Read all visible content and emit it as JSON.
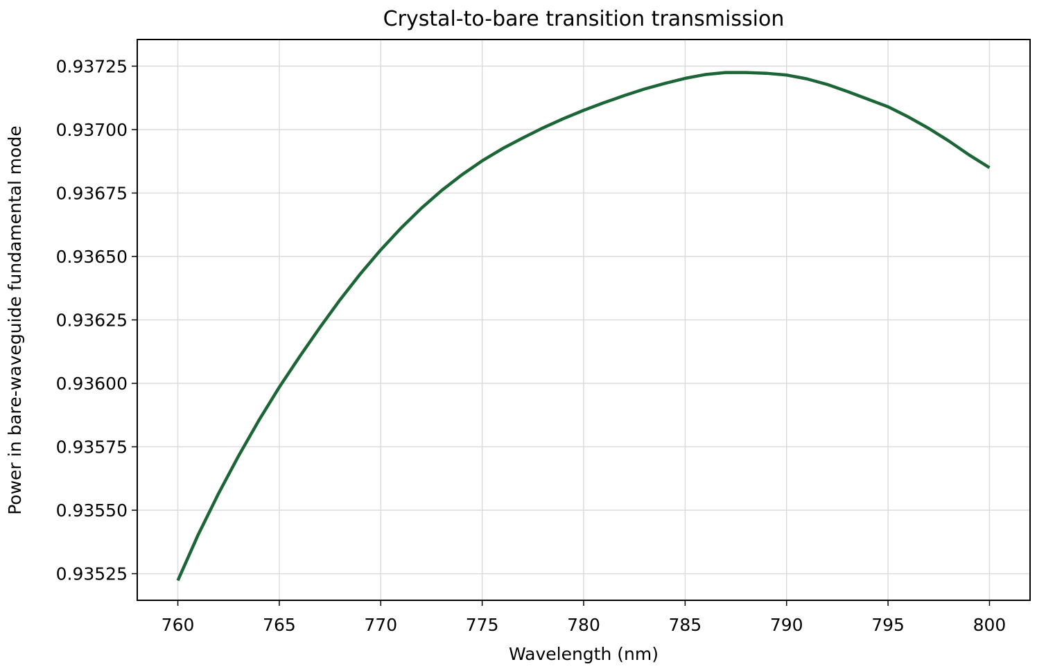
{
  "chart_data": {
    "type": "line",
    "title": "Crystal-to-bare transition transmission",
    "xlabel": "Wavelength (nm)",
    "ylabel": "Power in bare-waveguide fundamental mode",
    "xlim": [
      758.0,
      802.0
    ],
    "ylim": [
      0.935145,
      0.937355
    ],
    "grid": true,
    "x_ticks": [
      760,
      765,
      770,
      775,
      780,
      785,
      790,
      795,
      800
    ],
    "x_tick_labels": [
      "760",
      "765",
      "770",
      "775",
      "780",
      "785",
      "790",
      "795",
      "800"
    ],
    "y_ticks": [
      0.93525,
      0.9355,
      0.93575,
      0.936,
      0.93625,
      0.9365,
      0.93675,
      0.937,
      0.93725
    ],
    "y_tick_labels": [
      "0.93525",
      "0.93550",
      "0.93575",
      "0.93600",
      "0.93625",
      "0.93650",
      "0.93675",
      "0.93700",
      "0.93725"
    ],
    "series": [
      {
        "color": "#1b6536",
        "x": [
          760,
          761,
          762,
          763,
          764,
          765,
          766,
          767,
          768,
          769,
          770,
          771,
          772,
          773,
          774,
          775,
          776,
          777,
          778,
          779,
          780,
          781,
          782,
          783,
          784,
          785,
          786,
          787,
          788,
          789,
          790,
          791,
          792,
          793,
          794,
          795,
          796,
          797,
          798,
          799,
          800
        ],
        "y": [
          0.935223,
          0.935403,
          0.935565,
          0.935715,
          0.935855,
          0.935985,
          0.936105,
          0.93622,
          0.93633,
          0.936432,
          0.936526,
          0.936612,
          0.93669,
          0.93676,
          0.936822,
          0.936877,
          0.936925,
          0.936967,
          0.937007,
          0.937043,
          0.937076,
          0.937106,
          0.937134,
          0.93716,
          0.937182,
          0.937202,
          0.937217,
          0.937225,
          0.937225,
          0.937222,
          0.937215,
          0.9372,
          0.937178,
          0.93715,
          0.93712,
          0.93709,
          0.93705,
          0.937005,
          0.936955,
          0.9369,
          0.93685
        ]
      }
    ]
  }
}
